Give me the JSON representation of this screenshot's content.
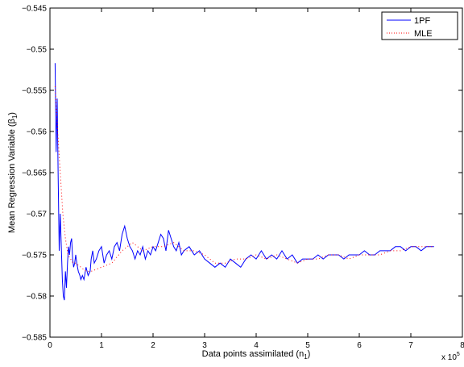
{
  "chart_data": {
    "type": "line",
    "title": "",
    "xlabel": "Data points assimilated (n",
    "xlabel_sub": "1",
    "xlabel_tail": ")",
    "ylabel": "Mean Regression Variable (β",
    "ylabel_sub": "1",
    "ylabel_tail": ")",
    "x_multiplier_label": "x 10",
    "x_multiplier_exp": "5",
    "xlim": [
      0,
      800000
    ],
    "ylim": [
      -0.585,
      -0.545
    ],
    "x_scale": 100000,
    "x_ticks": [
      0,
      1,
      2,
      3,
      4,
      5,
      6,
      7,
      8
    ],
    "x_tick_labels": [
      "0",
      "1",
      "2",
      "3",
      "4",
      "5",
      "6",
      "7",
      "8"
    ],
    "y_ticks": [
      -0.545,
      -0.55,
      -0.555,
      -0.56,
      -0.565,
      -0.57,
      -0.575,
      -0.58,
      -0.585
    ],
    "y_tick_labels": [
      "−0.545",
      "−0.55",
      "−0.555",
      "−0.56",
      "−0.565",
      "−0.57",
      "−0.575",
      "−0.58",
      "−0.585"
    ],
    "grid": false,
    "legend_position": "top-right",
    "series": [
      {
        "name": "1PF",
        "color": "#0000ff",
        "style": "solid",
        "x": [
          10000,
          12000,
          14000,
          16000,
          18000,
          20000,
          22000,
          24000,
          26000,
          28000,
          30000,
          32000,
          34000,
          36000,
          38000,
          40000,
          42000,
          44000,
          46000,
          48000,
          50000,
          52000,
          55000,
          58000,
          60000,
          63000,
          66000,
          70000,
          74000,
          78000,
          80000,
          83000,
          86000,
          90000,
          95000,
          100000,
          105000,
          110000,
          115000,
          120000,
          125000,
          130000,
          135000,
          140000,
          145000,
          150000,
          155000,
          160000,
          165000,
          170000,
          175000,
          180000,
          185000,
          190000,
          195000,
          200000,
          205000,
          210000,
          215000,
          220000,
          225000,
          230000,
          235000,
          240000,
          245000,
          250000,
          255000,
          260000,
          270000,
          280000,
          290000,
          300000,
          310000,
          320000,
          330000,
          340000,
          350000,
          360000,
          370000,
          380000,
          390000,
          400000,
          410000,
          420000,
          430000,
          440000,
          450000,
          460000,
          470000,
          480000,
          490000,
          500000,
          510000,
          520000,
          530000,
          540000,
          550000,
          560000,
          570000,
          580000,
          590000,
          600000,
          610000,
          620000,
          630000,
          640000,
          650000,
          660000,
          670000,
          680000,
          690000,
          700000,
          710000,
          720000,
          730000,
          740000,
          745000
        ],
        "y": [
          -0.5517,
          -0.5625,
          -0.556,
          -0.5655,
          -0.5745,
          -0.57,
          -0.574,
          -0.578,
          -0.58,
          -0.5805,
          -0.577,
          -0.579,
          -0.576,
          -0.574,
          -0.575,
          -0.5735,
          -0.573,
          -0.5755,
          -0.5765,
          -0.576,
          -0.575,
          -0.576,
          -0.577,
          -0.5775,
          -0.578,
          -0.5775,
          -0.578,
          -0.5765,
          -0.5775,
          -0.577,
          -0.5755,
          -0.5745,
          -0.576,
          -0.5755,
          -0.5745,
          -0.574,
          -0.576,
          -0.575,
          -0.5745,
          -0.5755,
          -0.574,
          -0.5735,
          -0.5745,
          -0.5725,
          -0.5715,
          -0.573,
          -0.574,
          -0.5745,
          -0.5755,
          -0.5745,
          -0.575,
          -0.574,
          -0.5755,
          -0.5745,
          -0.575,
          -0.574,
          -0.5745,
          -0.5735,
          -0.5725,
          -0.573,
          -0.5745,
          -0.572,
          -0.573,
          -0.574,
          -0.5745,
          -0.5735,
          -0.575,
          -0.5745,
          -0.574,
          -0.575,
          -0.5745,
          -0.5755,
          -0.576,
          -0.5765,
          -0.576,
          -0.5765,
          -0.5755,
          -0.576,
          -0.5765,
          -0.5755,
          -0.575,
          -0.5755,
          -0.5745,
          -0.5755,
          -0.575,
          -0.5755,
          -0.5745,
          -0.5755,
          -0.575,
          -0.576,
          -0.5755,
          -0.5755,
          -0.5755,
          -0.575,
          -0.5755,
          -0.575,
          -0.575,
          -0.575,
          -0.5755,
          -0.575,
          -0.575,
          -0.575,
          -0.5745,
          -0.575,
          -0.575,
          -0.5745,
          -0.5745,
          -0.5745,
          -0.574,
          -0.574,
          -0.5745,
          -0.574,
          -0.574,
          -0.5745,
          -0.574,
          -0.574,
          -0.574
        ]
      },
      {
        "name": "MLE",
        "color": "#ff0000",
        "style": "dotted",
        "x": [
          10000,
          15000,
          20000,
          25000,
          30000,
          35000,
          40000,
          45000,
          50000,
          60000,
          70000,
          80000,
          100000,
          120000,
          140000,
          160000,
          180000,
          200000,
          220000,
          240000,
          260000,
          280000,
          300000,
          320000,
          340000,
          360000,
          380000,
          400000,
          420000,
          440000,
          460000,
          480000,
          500000,
          520000,
          540000,
          560000,
          580000,
          600000,
          620000,
          640000,
          660000,
          680000,
          700000,
          720000,
          740000,
          745000
        ],
        "y": [
          -0.5545,
          -0.56,
          -0.565,
          -0.57,
          -0.573,
          -0.575,
          -0.5755,
          -0.576,
          -0.576,
          -0.5765,
          -0.577,
          -0.577,
          -0.5765,
          -0.576,
          -0.5745,
          -0.5735,
          -0.5745,
          -0.574,
          -0.574,
          -0.5735,
          -0.5745,
          -0.5745,
          -0.575,
          -0.576,
          -0.576,
          -0.5755,
          -0.5755,
          -0.575,
          -0.5755,
          -0.575,
          -0.5755,
          -0.576,
          -0.5755,
          -0.5755,
          -0.575,
          -0.575,
          -0.5755,
          -0.575,
          -0.575,
          -0.575,
          -0.5745,
          -0.5745,
          -0.574,
          -0.574,
          -0.574,
          -0.574
        ]
      }
    ]
  }
}
